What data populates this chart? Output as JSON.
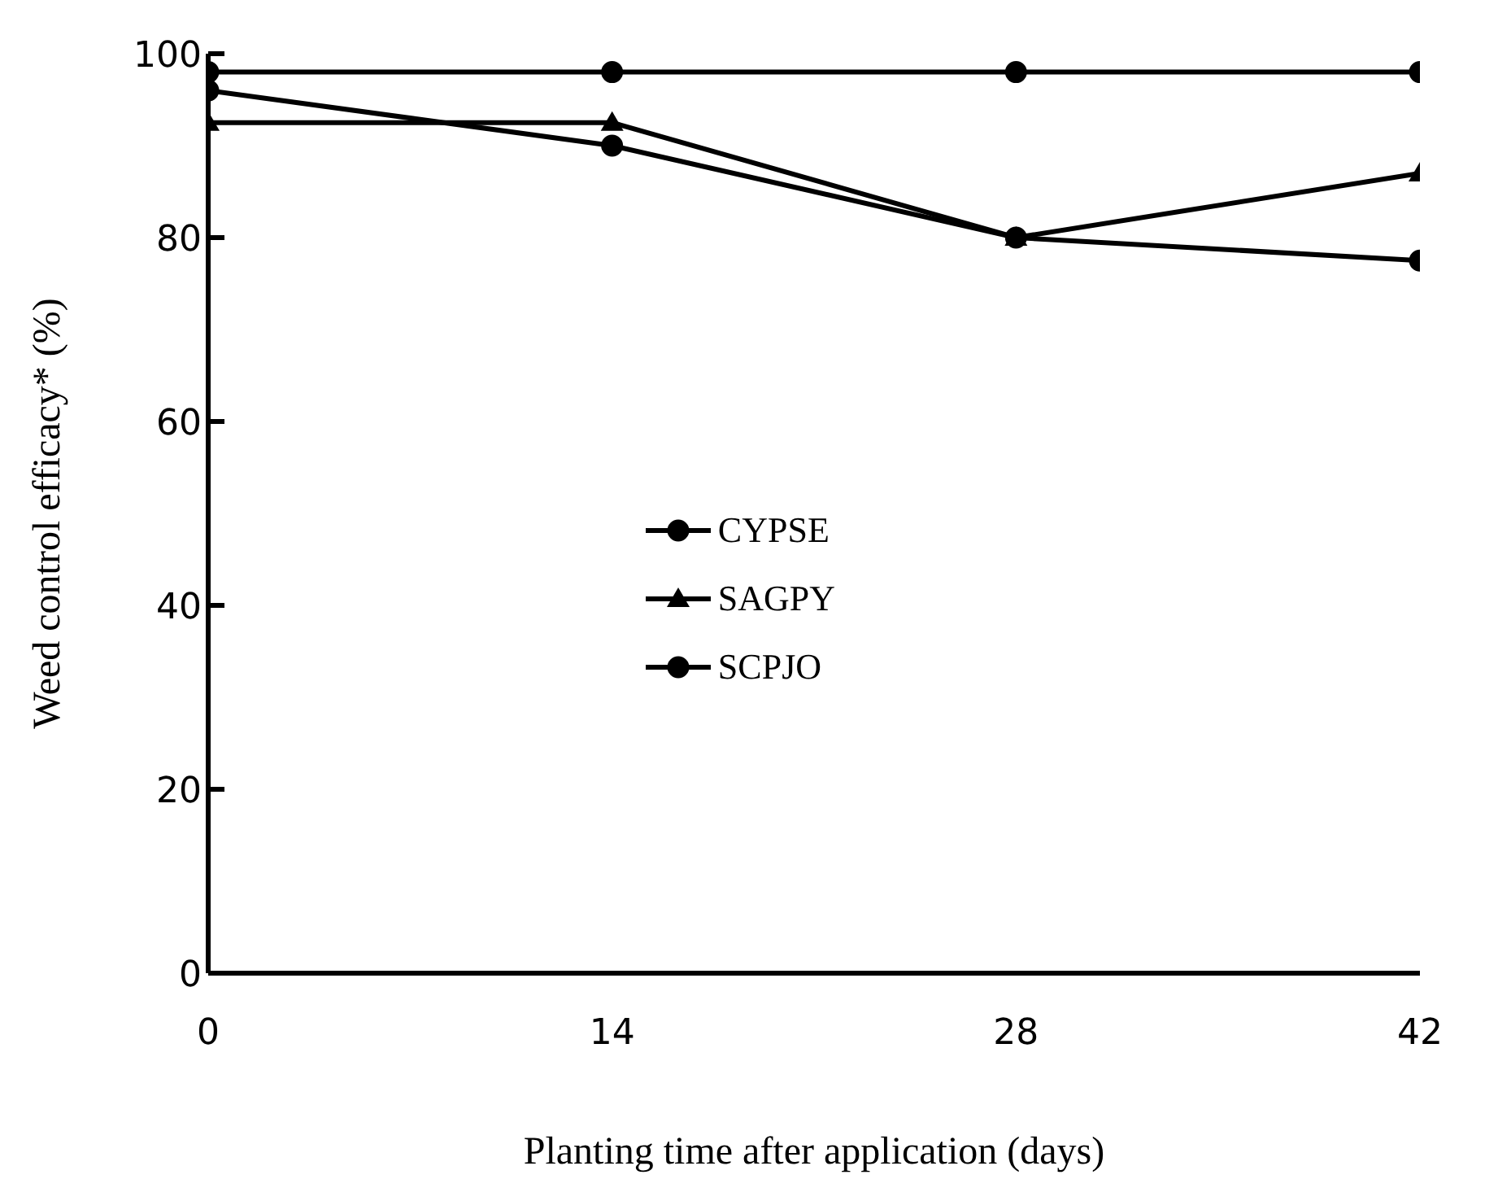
{
  "chart_data": {
    "type": "line",
    "xlabel": "Planting time after application (days)",
    "ylabel": "Weed control efficacy* (%)",
    "x": [
      0,
      14,
      28,
      42
    ],
    "xlim": [
      0,
      42
    ],
    "xticks": [
      0,
      14,
      28,
      42
    ],
    "ylim": [
      0,
      100
    ],
    "yticks": [
      0,
      20,
      40,
      60,
      80,
      100
    ],
    "series": [
      {
        "name": "CYPSE",
        "color": "#000000",
        "values": [
          98,
          98,
          98,
          98
        ],
        "marker": "circle"
      },
      {
        "name": "SAGPY",
        "color": "#000000",
        "values": [
          92.5,
          92.5,
          80,
          87
        ],
        "marker": "triangle"
      },
      {
        "name": "SCPJO",
        "color": "#000000",
        "values": [
          96,
          90,
          80,
          77.5
        ],
        "marker": "circle"
      }
    ],
    "grid": false,
    "legend": "center",
    "line_style": "solid"
  }
}
